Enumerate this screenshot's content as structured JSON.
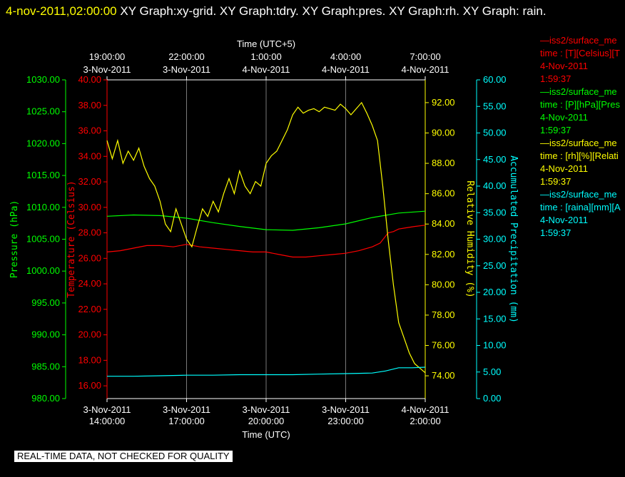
{
  "header": {
    "timestamp": "4-nov-2011,02:00:00",
    "graphs": "XY Graph:xy-grid.  XY Graph:tdry.  XY Graph:pres.  XY Graph:rh.  XY Graph: rain."
  },
  "banner": "REAL-TIME DATA, NOT CHECKED FOR QUALITY",
  "legend": [
    {
      "name": "—iss2/surface_me",
      "var": "time : [T][Celsius][T",
      "date": "4-Nov-2011",
      "time": "1:59:37",
      "color": "#ff0000"
    },
    {
      "name": "—iss2/surface_me",
      "var": "time : [P][hPa][Pres",
      "date": "4-Nov-2011",
      "time": "1:59:37",
      "color": "#00ff00"
    },
    {
      "name": "—iss2/surface_me",
      "var": "time : [rh][%][Relati",
      "date": "4-Nov-2011",
      "time": "1:59:37",
      "color": "#ffff00"
    },
    {
      "name": "—iss2/surface_me",
      "var": "time : [raina][mm][A",
      "date": "4-Nov-2011",
      "time": "1:59:37",
      "color": "#00ffff"
    }
  ],
  "chart_data": {
    "type": "line",
    "top_axis": {
      "label": "Time (UTC+5)",
      "ticks": [
        {
          "time": "19:00:00",
          "date": "3-Nov-2011"
        },
        {
          "time": "22:00:00",
          "date": "3-Nov-2011"
        },
        {
          "time": "1:00:00",
          "date": "4-Nov-2011"
        },
        {
          "time": "4:00:00",
          "date": "4-Nov-2011"
        },
        {
          "time": "7:00:00",
          "date": "4-Nov-2011"
        }
      ]
    },
    "bottom_axis": {
      "label": "Time (UTC)",
      "ticks": [
        {
          "date": "3-Nov-2011",
          "time": "14:00:00"
        },
        {
          "date": "3-Nov-2011",
          "time": "17:00:00"
        },
        {
          "date": "3-Nov-2011",
          "time": "20:00:00"
        },
        {
          "date": "3-Nov-2011",
          "time": "23:00:00"
        },
        {
          "date": "4-Nov-2011",
          "time": "2:00:00"
        }
      ],
      "range_hours": [
        14,
        26
      ]
    },
    "axes": [
      {
        "id": "pres",
        "label": "Pressure (hPa)",
        "color": "#00ff00",
        "min": 980,
        "max": 1030,
        "ticks": [
          "1030.00",
          "1025.00",
          "1020.00",
          "1015.00",
          "1010.00",
          "1005.00",
          "1000.00",
          "995.00",
          "990.00",
          "985.00",
          "980.00"
        ]
      },
      {
        "id": "temp",
        "label": "Temperature (Celsius)",
        "color": "#ff0000",
        "min": 15,
        "max": 40,
        "ticks": [
          "40.00",
          "38.00",
          "36.00",
          "34.00",
          "32.00",
          "30.00",
          "28.00",
          "26.00",
          "24.00",
          "22.00",
          "20.00",
          "18.00",
          "16.00"
        ]
      },
      {
        "id": "rh",
        "label": "Relative Humidity (%)",
        "color": "#ffff00",
        "min": 72.5,
        "max": 93.5,
        "ticks": [
          "92.00",
          "90.00",
          "88.00",
          "86.00",
          "84.00",
          "82.00",
          "80.00",
          "78.00",
          "76.00",
          "74.00"
        ]
      },
      {
        "id": "rain",
        "label": "Accumulated Precipitation (mm)",
        "color": "#00ffff",
        "min": 0,
        "max": 60,
        "ticks": [
          "60.00",
          "55.00",
          "50.00",
          "45.00",
          "40.00",
          "35.00",
          "30.00",
          "25.00",
          "20.00",
          "15.00",
          "10.00",
          "5.00",
          "0.00"
        ]
      }
    ],
    "series": [
      {
        "axis": "temp",
        "color": "#ff0000",
        "x": [
          14.0,
          14.5,
          15.0,
          15.5,
          16.0,
          16.5,
          17.0,
          17.5,
          18.0,
          18.5,
          19.0,
          19.5,
          20.0,
          20.5,
          21.0,
          21.5,
          22.0,
          22.5,
          23.0,
          23.5,
          24.0,
          24.3,
          24.6,
          24.8,
          25.0,
          25.3,
          25.6,
          26.0
        ],
        "y": [
          26.5,
          26.6,
          26.8,
          27.0,
          27.0,
          26.9,
          27.1,
          26.9,
          26.8,
          26.7,
          26.6,
          26.5,
          26.5,
          26.3,
          26.1,
          26.1,
          26.2,
          26.3,
          26.4,
          26.6,
          26.9,
          27.2,
          28.0,
          28.1,
          28.3,
          28.4,
          28.5,
          28.6
        ]
      },
      {
        "axis": "pres",
        "color": "#00ff00",
        "x": [
          14.0,
          15.0,
          16.0,
          17.0,
          18.0,
          19.0,
          20.0,
          21.0,
          22.0,
          23.0,
          24.0,
          25.0,
          26.0
        ],
        "y": [
          1008.6,
          1008.8,
          1008.7,
          1008.3,
          1007.6,
          1007.0,
          1006.5,
          1006.4,
          1006.8,
          1007.4,
          1008.4,
          1009.1,
          1009.4
        ]
      },
      {
        "axis": "rh",
        "color": "#ffff00",
        "x": [
          14.0,
          14.2,
          14.4,
          14.6,
          14.8,
          15.0,
          15.2,
          15.4,
          15.6,
          15.8,
          16.0,
          16.2,
          16.4,
          16.6,
          16.8,
          17.0,
          17.2,
          17.4,
          17.6,
          17.8,
          18.0,
          18.2,
          18.4,
          18.6,
          18.8,
          19.0,
          19.2,
          19.4,
          19.6,
          19.8,
          20.0,
          20.2,
          20.4,
          20.6,
          20.8,
          21.0,
          21.2,
          21.4,
          21.6,
          21.8,
          22.0,
          22.2,
          22.4,
          22.6,
          22.8,
          23.0,
          23.2,
          23.4,
          23.6,
          23.8,
          24.0,
          24.2,
          24.4,
          24.6,
          24.8,
          25.0,
          25.2,
          25.4,
          25.6,
          25.8,
          26.0
        ],
        "y": [
          89.5,
          88.3,
          89.5,
          88.0,
          88.8,
          88.2,
          89.0,
          87.8,
          87.0,
          86.5,
          85.5,
          84.0,
          83.5,
          85.0,
          84.0,
          83.0,
          82.5,
          83.8,
          85.0,
          84.5,
          85.5,
          84.8,
          86.0,
          87.0,
          86.0,
          87.5,
          86.5,
          86.0,
          86.8,
          86.5,
          88.0,
          88.5,
          88.8,
          89.5,
          90.2,
          91.2,
          91.7,
          91.3,
          91.5,
          91.6,
          91.4,
          91.7,
          91.6,
          91.5,
          91.9,
          91.6,
          91.2,
          91.6,
          92.0,
          91.3,
          90.5,
          89.5,
          86.5,
          83.0,
          80.0,
          77.5,
          76.5,
          75.5,
          74.8,
          74.5,
          74.2
        ]
      },
      {
        "axis": "rain",
        "color": "#00ffff",
        "x": [
          14.0,
          15.0,
          16.0,
          17.0,
          18.0,
          19.0,
          20.0,
          21.0,
          22.0,
          23.0,
          24.0,
          24.5,
          25.0,
          25.5,
          26.0
        ],
        "y": [
          4.2,
          4.2,
          4.3,
          4.4,
          4.4,
          4.5,
          4.5,
          4.5,
          4.6,
          4.7,
          4.8,
          5.2,
          5.8,
          5.8,
          5.9
        ]
      }
    ],
    "grid": true
  }
}
